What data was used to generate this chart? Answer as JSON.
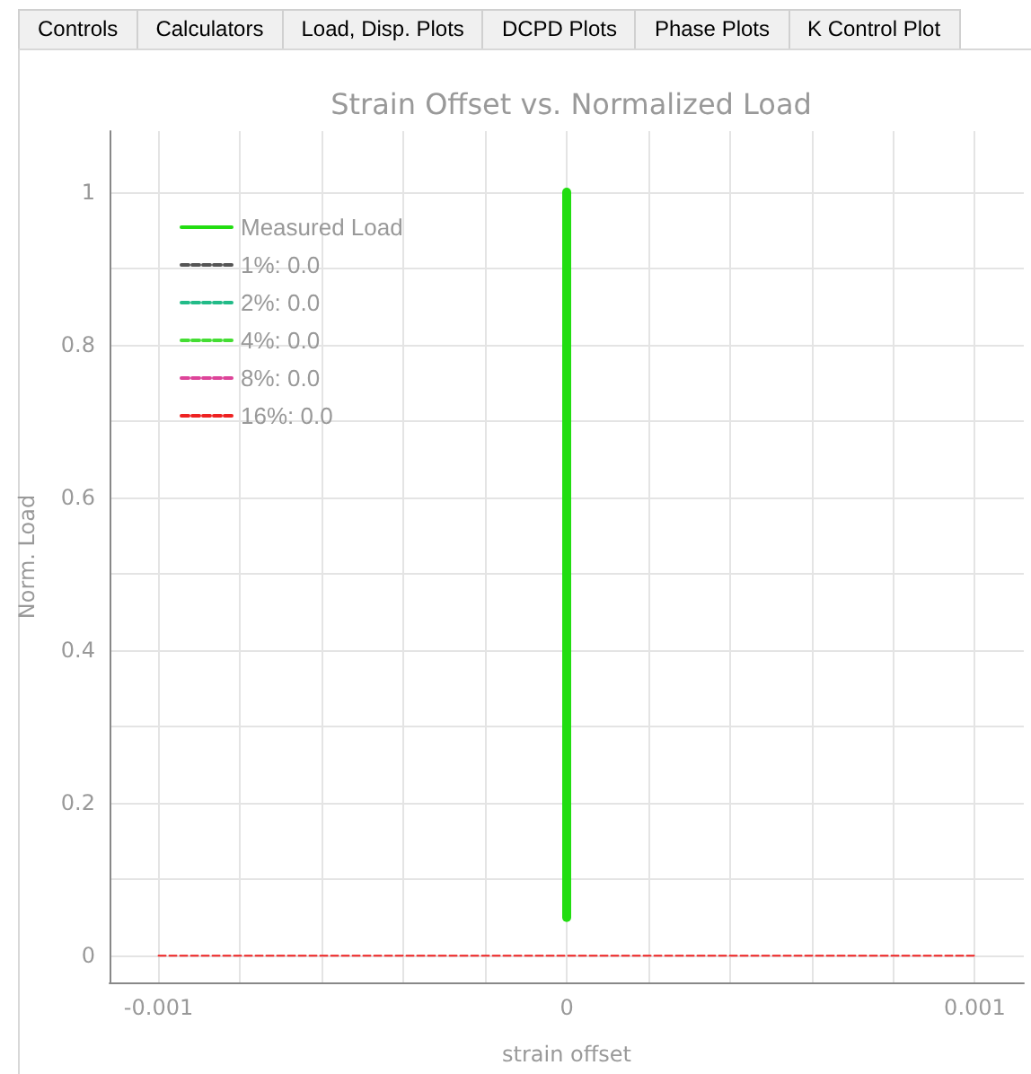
{
  "chart_data": {
    "type": "line",
    "title": "Strain Offset vs. Normalized Load",
    "xlabel": "strain offset",
    "ylabel": "Norm. Load",
    "annotations": [
      "Controls",
      "Calculators",
      "Load, Disp. Plots",
      "DCPD Plots",
      "Phase Plots",
      "K Control Plot"
    ],
    "xlim": [
      -0.00112,
      0.00112
    ],
    "xticks": [
      {
        "value": -0.001,
        "label": "-0.001"
      },
      {
        "value": -0.0008,
        "label": null
      },
      {
        "value": -0.0006,
        "label": null
      },
      {
        "value": -0.0004,
        "label": null
      },
      {
        "value": -0.0002,
        "label": null
      },
      {
        "value": 0,
        "label": "0"
      },
      {
        "value": 0.0002,
        "label": null
      },
      {
        "value": 0.0004,
        "label": null
      },
      {
        "value": 0.0006,
        "label": null
      },
      {
        "value": 0.0008,
        "label": null
      },
      {
        "value": 0.001,
        "label": "0.001"
      }
    ],
    "ylim": [
      -0.035,
      1.08
    ],
    "yticks": [
      0,
      {
        "value": 0.1,
        "label": null
      },
      0.2,
      {
        "value": 0.3,
        "label": null
      },
      0.4,
      {
        "value": 0.5,
        "label": null
      },
      0.6,
      {
        "value": 0.7,
        "label": null
      },
      0.8,
      {
        "value": 0.9,
        "label": null
      },
      1
    ],
    "grid": true,
    "legend": "top left",
    "marker": "none",
    "series": [
      {
        "name": "Measured Load",
        "color": "#22dd11",
        "line_style": "solid",
        "x": [
          0,
          0
        ],
        "values": [
          0.05,
          1
        ]
      },
      {
        "name": "1%: 0.0",
        "color": "#555555",
        "line_style": "dashed"
      },
      {
        "name": "2%: 0.0",
        "color": "#22bb88",
        "line_style": "dashed"
      },
      {
        "name": "4%: 0.0",
        "color": "#44dd33",
        "line_style": "dashed"
      },
      {
        "name": "8%: 0.0",
        "color": "#dd4499",
        "line_style": "dashed"
      },
      {
        "name": "16%: 0.0",
        "color": "#ee2222",
        "line_style": "dashed",
        "x": [
          -0.001,
          0.001
        ],
        "values": [
          0,
          0
        ]
      }
    ]
  }
}
